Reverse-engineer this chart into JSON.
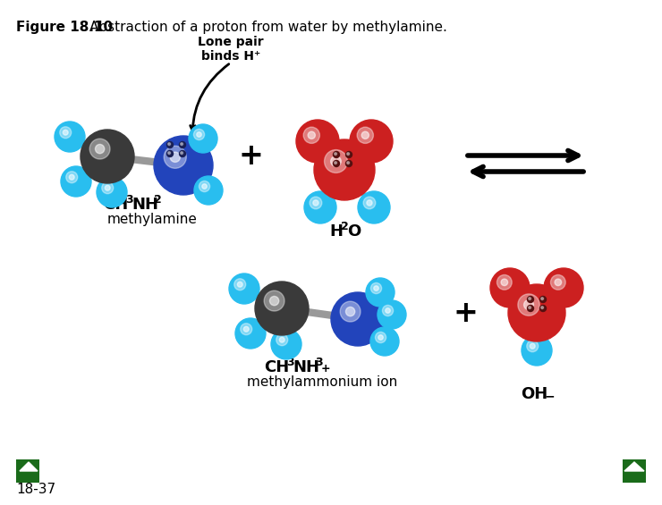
{
  "title_bold": "Figure 18.10",
  "title_regular": "Abstraction of a proton from water by methylamine.",
  "title_fontsize": 12,
  "bg_color": "#ffffff",
  "annotation_lone_pair": "Lone pair\nbinds H⁺",
  "label_ch3nh2_parts": [
    "CH",
    "3",
    "NH",
    "2"
  ],
  "label_methylamine": "methylamine",
  "label_h2o_parts": [
    "H",
    "2",
    "O"
  ],
  "label_ch3nh3_parts": [
    "CH",
    "3",
    "NH",
    "3",
    "+"
  ],
  "label_oh_parts": [
    "OH",
    "−"
  ],
  "label_methylammonium": "methylammonium ion",
  "label_slide": "18-37",
  "colors": {
    "cyan": "#29BEEF",
    "dark_gray": "#3a3a3a",
    "blue": "#2244BB",
    "red": "#CC2020",
    "black": "#000000",
    "white": "#ffffff",
    "green_dark": "#1a6b1a",
    "light_gray": "#B0B0B0",
    "bond_gray": "#999999"
  }
}
